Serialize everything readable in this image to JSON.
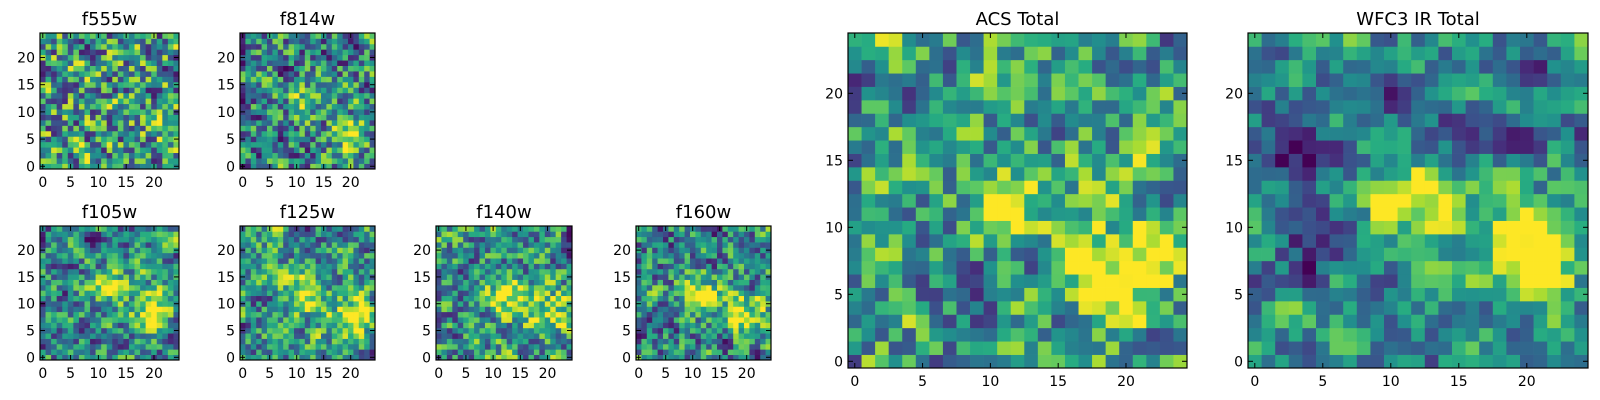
{
  "chart_data": [
    {
      "type": "heatmap",
      "title": "f555w",
      "xticks": [
        "0",
        "5",
        "10",
        "15",
        "20"
      ],
      "yticks": [
        "0",
        "5",
        "10",
        "15",
        "20"
      ],
      "xlim": [
        -0.5,
        24.5
      ],
      "ylim": [
        -0.5,
        24.5
      ],
      "grid_size": 25,
      "colormap": "viridis",
      "features": [],
      "noise": 0.85,
      "seed": 11,
      "base": 0.55
    },
    {
      "type": "heatmap",
      "title": "f814w",
      "xticks": [
        "0",
        "5",
        "10",
        "15",
        "20"
      ],
      "yticks": [
        "0",
        "5",
        "10",
        "15",
        "20"
      ],
      "xlim": [
        -0.5,
        24.5
      ],
      "ylim": [
        -0.5,
        24.5
      ],
      "grid_size": 25,
      "colormap": "viridis",
      "features": [
        {
          "x": 12,
          "y": 12,
          "amp": 0.35,
          "sigma": 2.2
        },
        {
          "x": 20,
          "y": 6,
          "amp": 0.45,
          "sigma": 2.5
        }
      ],
      "noise": 0.7,
      "seed": 23,
      "base": 0.45
    },
    {
      "type": "heatmap",
      "title": "f105w",
      "xticks": [
        "0",
        "5",
        "10",
        "15",
        "20"
      ],
      "yticks": [
        "0",
        "5",
        "10",
        "15",
        "20"
      ],
      "xlim": [
        -0.5,
        24.5
      ],
      "ylim": [
        -0.5,
        24.5
      ],
      "grid_size": 25,
      "colormap": "viridis",
      "features": [
        {
          "x": 12,
          "y": 13,
          "amp": 0.5,
          "sigma": 2.2
        },
        {
          "x": 20,
          "y": 9,
          "amp": 0.55,
          "sigma": 2.8
        }
      ],
      "noise": 0.55,
      "seed": 37,
      "base": 0.45
    },
    {
      "type": "heatmap",
      "title": "f125w",
      "xticks": [
        "0",
        "5",
        "10",
        "15",
        "20"
      ],
      "yticks": [
        "0",
        "5",
        "10",
        "15",
        "20"
      ],
      "xlim": [
        -0.5,
        24.5
      ],
      "ylim": [
        -0.5,
        24.5
      ],
      "grid_size": 25,
      "colormap": "viridis",
      "features": [
        {
          "x": 12,
          "y": 12,
          "amp": 0.45,
          "sigma": 2.6
        },
        {
          "x": 20,
          "y": 7,
          "amp": 0.5,
          "sigma": 2.8
        }
      ],
      "noise": 0.55,
      "seed": 41,
      "base": 0.5
    },
    {
      "type": "heatmap",
      "title": "f140w",
      "xticks": [
        "0",
        "5",
        "10",
        "15",
        "20"
      ],
      "yticks": [
        "0",
        "5",
        "10",
        "15",
        "20"
      ],
      "xlim": [
        -0.5,
        24.5
      ],
      "ylim": [
        -0.5,
        24.5
      ],
      "grid_size": 25,
      "colormap": "viridis",
      "features": [
        {
          "x": 13,
          "y": 11,
          "amp": 0.45,
          "sigma": 2.6
        },
        {
          "x": 20,
          "y": 8,
          "amp": 0.45,
          "sigma": 2.8
        }
      ],
      "noise": 0.6,
      "seed": 53,
      "base": 0.5
    },
    {
      "type": "heatmap",
      "title": "f160w",
      "xticks": [
        "0",
        "5",
        "10",
        "15",
        "20"
      ],
      "yticks": [
        "0",
        "5",
        "10",
        "15",
        "20"
      ],
      "xlim": [
        -0.5,
        24.5
      ],
      "ylim": [
        -0.5,
        24.5
      ],
      "grid_size": 25,
      "colormap": "viridis",
      "features": [
        {
          "x": 12,
          "y": 12,
          "amp": 0.5,
          "sigma": 2.4
        },
        {
          "x": 20,
          "y": 8,
          "amp": 0.55,
          "sigma": 2.8
        }
      ],
      "noise": 0.6,
      "seed": 67,
      "base": 0.45
    },
    {
      "type": "heatmap",
      "title": "ACS Total",
      "xticks": [
        "0",
        "5",
        "10",
        "15",
        "20"
      ],
      "yticks": [
        "0",
        "5",
        "10",
        "15",
        "20"
      ],
      "xlim": [
        -0.5,
        24.5
      ],
      "ylim": [
        -0.5,
        24.5
      ],
      "grid_size": 25,
      "colormap": "viridis",
      "features": [
        {
          "x": 12,
          "y": 12,
          "amp": 0.5,
          "sigma": 1.8
        },
        {
          "x": 20,
          "y": 7,
          "amp": 0.45,
          "sigma": 2.6
        }
      ],
      "noise": 0.55,
      "seed": 79,
      "base": 0.55
    },
    {
      "type": "heatmap",
      "title": "WFC3 IR Total",
      "xticks": [
        "0",
        "5",
        "10",
        "15",
        "20"
      ],
      "yticks": [
        "0",
        "5",
        "10",
        "15",
        "20"
      ],
      "xlim": [
        -0.5,
        24.5
      ],
      "ylim": [
        -0.5,
        24.5
      ],
      "grid_size": 25,
      "colormap": "viridis",
      "features": [
        {
          "x": 12,
          "y": 12,
          "amp": 0.6,
          "sigma": 2.2
        },
        {
          "x": 20,
          "y": 8,
          "amp": 0.6,
          "sigma": 3.0
        },
        {
          "x": 2,
          "y": 15,
          "amp": -0.45,
          "sigma": 1.6
        },
        {
          "x": 4,
          "y": 9,
          "amp": -0.4,
          "sigma": 1.6
        }
      ],
      "noise": 0.35,
      "seed": 97,
      "base": 0.45
    }
  ]
}
